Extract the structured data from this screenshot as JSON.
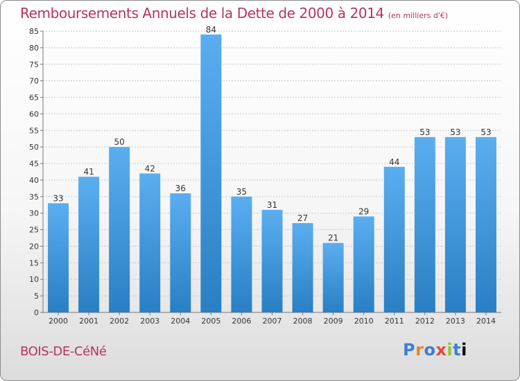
{
  "chart_data": {
    "type": "bar",
    "title": "Remboursements Annuels de la Dette de 2000 à 2014",
    "unit_label": "(en milliers d'€)",
    "categories": [
      "2000",
      "2001",
      "2002",
      "2003",
      "2004",
      "2005",
      "2006",
      "2007",
      "2008",
      "2009",
      "2010",
      "2011",
      "2012",
      "2013",
      "2014"
    ],
    "values": [
      33,
      41,
      50,
      42,
      36,
      84,
      35,
      31,
      27,
      21,
      29,
      44,
      53,
      53,
      53
    ],
    "ylim": [
      0,
      85
    ],
    "yticks": [
      0,
      5,
      10,
      15,
      20,
      25,
      30,
      35,
      40,
      45,
      50,
      55,
      60,
      65,
      70,
      75,
      80,
      85
    ],
    "grid": true,
    "xlabel": "",
    "ylabel": "",
    "bar_color_top": "#5aaef0",
    "bar_color_bottom": "#2a7fc4"
  },
  "footer": {
    "commune": "BOIS-DE-CéNé",
    "logo_letters": [
      "P",
      "r",
      "o",
      "x",
      "i",
      "t",
      "i"
    ]
  },
  "colors": {
    "title": "#b5345f",
    "grid": "#c8c8c8"
  }
}
